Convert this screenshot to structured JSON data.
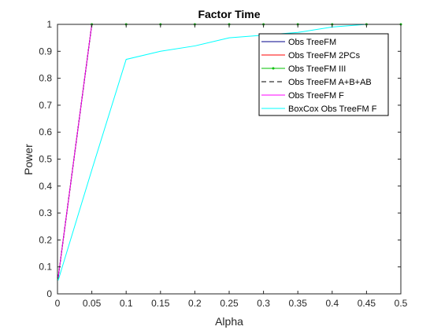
{
  "chart_data": {
    "type": "line",
    "title": "Factor Time",
    "xlabel": "Alpha",
    "ylabel": "Power",
    "xlim": [
      0,
      0.5
    ],
    "ylim": [
      0,
      1
    ],
    "xticks": [
      "0",
      "0.05",
      "0.1",
      "0.15",
      "0.2",
      "0.25",
      "0.3",
      "0.35",
      "0.4",
      "0.45",
      "0.5"
    ],
    "yticks": [
      "0",
      "0.1",
      "0.2",
      "0.3",
      "0.4",
      "0.5",
      "0.6",
      "0.7",
      "0.8",
      "0.9",
      "1"
    ],
    "grid": false,
    "legend_position": "top-right",
    "x": [
      0.001,
      0.05,
      0.1,
      0.15,
      0.2,
      0.25,
      0.3,
      0.35,
      0.4,
      0.45,
      0.5
    ],
    "series": [
      {
        "name": "Obs TreeFM",
        "color": "#00008b",
        "dash": "solid",
        "marker": "none",
        "values": [
          0.06,
          1,
          1,
          1,
          1,
          1,
          1,
          1,
          1,
          1,
          1
        ]
      },
      {
        "name": "Obs TreeFM 2PCs",
        "color": "#ff0000",
        "dash": "solid",
        "marker": "none",
        "values": [
          0.06,
          1,
          1,
          1,
          1,
          1,
          1,
          1,
          1,
          1,
          1
        ]
      },
      {
        "name": "Obs TreeFM III",
        "color": "#00c000",
        "dash": "solid",
        "marker": "dot",
        "values": [
          0.06,
          1,
          1,
          1,
          1,
          1,
          1,
          1,
          1,
          1,
          1
        ]
      },
      {
        "name": "Obs TreeFM A+B+AB",
        "color": "#000000",
        "dash": "dashed",
        "marker": "none",
        "values": [
          0.06,
          1,
          1,
          1,
          1,
          1,
          1,
          1,
          1,
          1,
          1
        ]
      },
      {
        "name": "Obs TreeFM F",
        "color": "#ff00ff",
        "dash": "solid",
        "marker": "none",
        "values": [
          0.06,
          1,
          1,
          1,
          1,
          1,
          1,
          1,
          1,
          1,
          1
        ]
      },
      {
        "name": "BoxCox Obs TreeFM F",
        "color": "#00ffff",
        "dash": "solid",
        "marker": "none",
        "values": [
          0.05,
          0.46,
          0.87,
          0.9,
          0.92,
          0.95,
          0.96,
          0.97,
          0.99,
          1,
          1
        ]
      }
    ]
  }
}
